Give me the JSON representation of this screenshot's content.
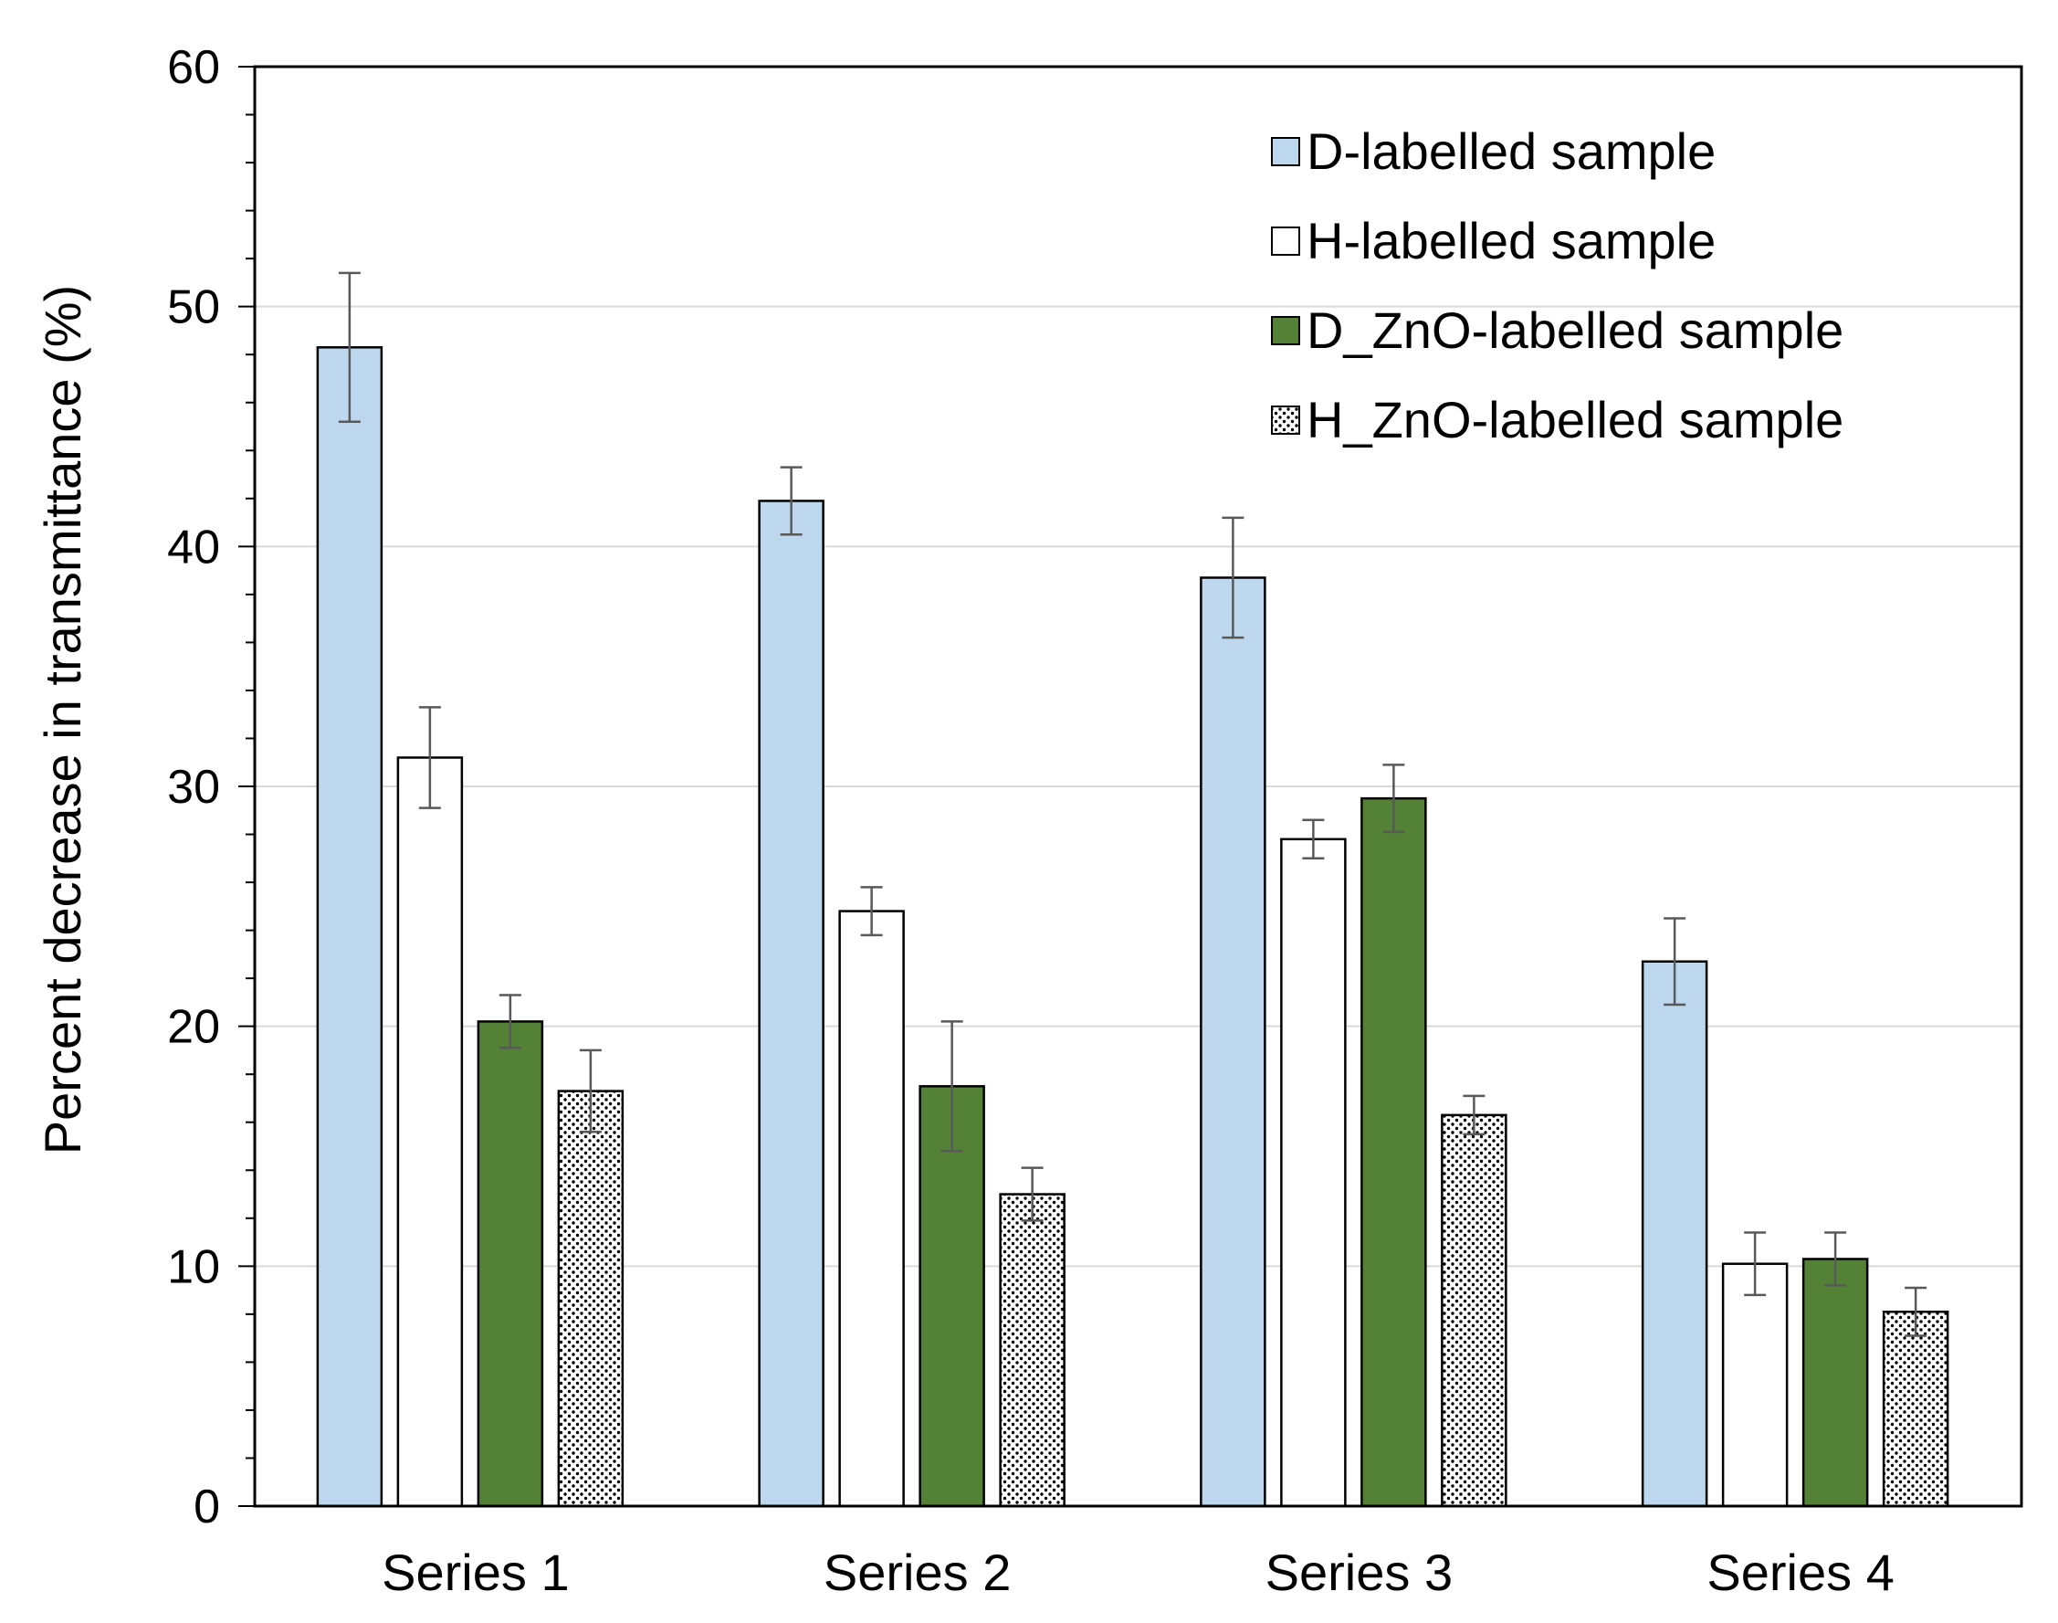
{
  "chart_data": {
    "type": "bar",
    "title": "",
    "xlabel": "",
    "ylabel": "Percent decrease in transmittance  (%)",
    "ylim": [
      0,
      60
    ],
    "yticks": [
      0,
      10,
      20,
      30,
      40,
      50,
      60
    ],
    "grid": true,
    "legend_position": "top-right",
    "categories": [
      "Series 1",
      "Series 2",
      "Series 3",
      "Series 4"
    ],
    "series": [
      {
        "name": "D-labelled sample",
        "pattern": "solid",
        "color": "#bdd7ee",
        "values": [
          48.3,
          41.9,
          38.7,
          22.7
        ],
        "errors": [
          3.1,
          1.4,
          2.5,
          1.8
        ]
      },
      {
        "name": "H-labelled sample",
        "pattern": "solid",
        "color": "#ffffff",
        "values": [
          31.2,
          24.8,
          27.8,
          10.1
        ],
        "errors": [
          2.1,
          1.0,
          0.8,
          1.3
        ]
      },
      {
        "name": "D_ZnO-labelled sample",
        "pattern": "solid",
        "color": "#538135",
        "values": [
          20.2,
          17.5,
          29.5,
          10.3
        ],
        "errors": [
          1.1,
          2.7,
          1.4,
          1.1
        ]
      },
      {
        "name": "H_ZnO-labelled sample",
        "pattern": "dots",
        "color": "#ffffff",
        "values": [
          17.3,
          13.0,
          16.3,
          8.1
        ],
        "errors": [
          1.7,
          1.1,
          0.8,
          1.0
        ]
      }
    ],
    "colors": {
      "axis": "#000000",
      "grid": "#d9d9d9",
      "error_bar": "#595959",
      "dot": "#000000"
    }
  }
}
